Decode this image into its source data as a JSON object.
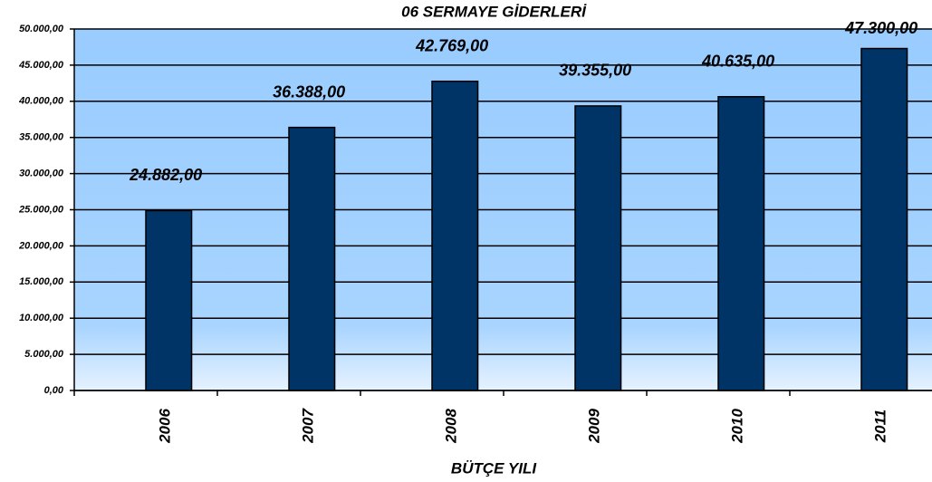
{
  "chart_data": {
    "type": "bar",
    "title": "06 SERMAYE GİDERLERİ",
    "x_label": "BÜTÇE YILI",
    "categories": [
      "2006",
      "2007",
      "2008",
      "2009",
      "2010",
      "2011"
    ],
    "values": [
      24882,
      36388,
      42769,
      39355,
      40635,
      47300
    ],
    "value_labels": [
      "24.882,00",
      "36.388,00",
      "42.769,00",
      "39.355,00",
      "40.635,00",
      "47.300,00"
    ],
    "color": "#003366",
    "ylim": [
      0,
      50000
    ],
    "yticks": [
      {
        "value": 0,
        "label": "0,00"
      },
      {
        "value": 5000,
        "label": "5.000,00"
      },
      {
        "value": 10000,
        "label": "10.000,00"
      },
      {
        "value": 15000,
        "label": "15.000,00"
      },
      {
        "value": 20000,
        "label": "20.000,00"
      },
      {
        "value": 25000,
        "label": "25.000,00"
      },
      {
        "value": 30000,
        "label": "30.000,00"
      },
      {
        "value": 35000,
        "label": "35.000,00"
      },
      {
        "value": 40000,
        "label": "40.000,00"
      },
      {
        "value": 45000,
        "label": "45.000,00"
      },
      {
        "value": 50000,
        "label": "50.000,00"
      }
    ],
    "grid": true
  }
}
